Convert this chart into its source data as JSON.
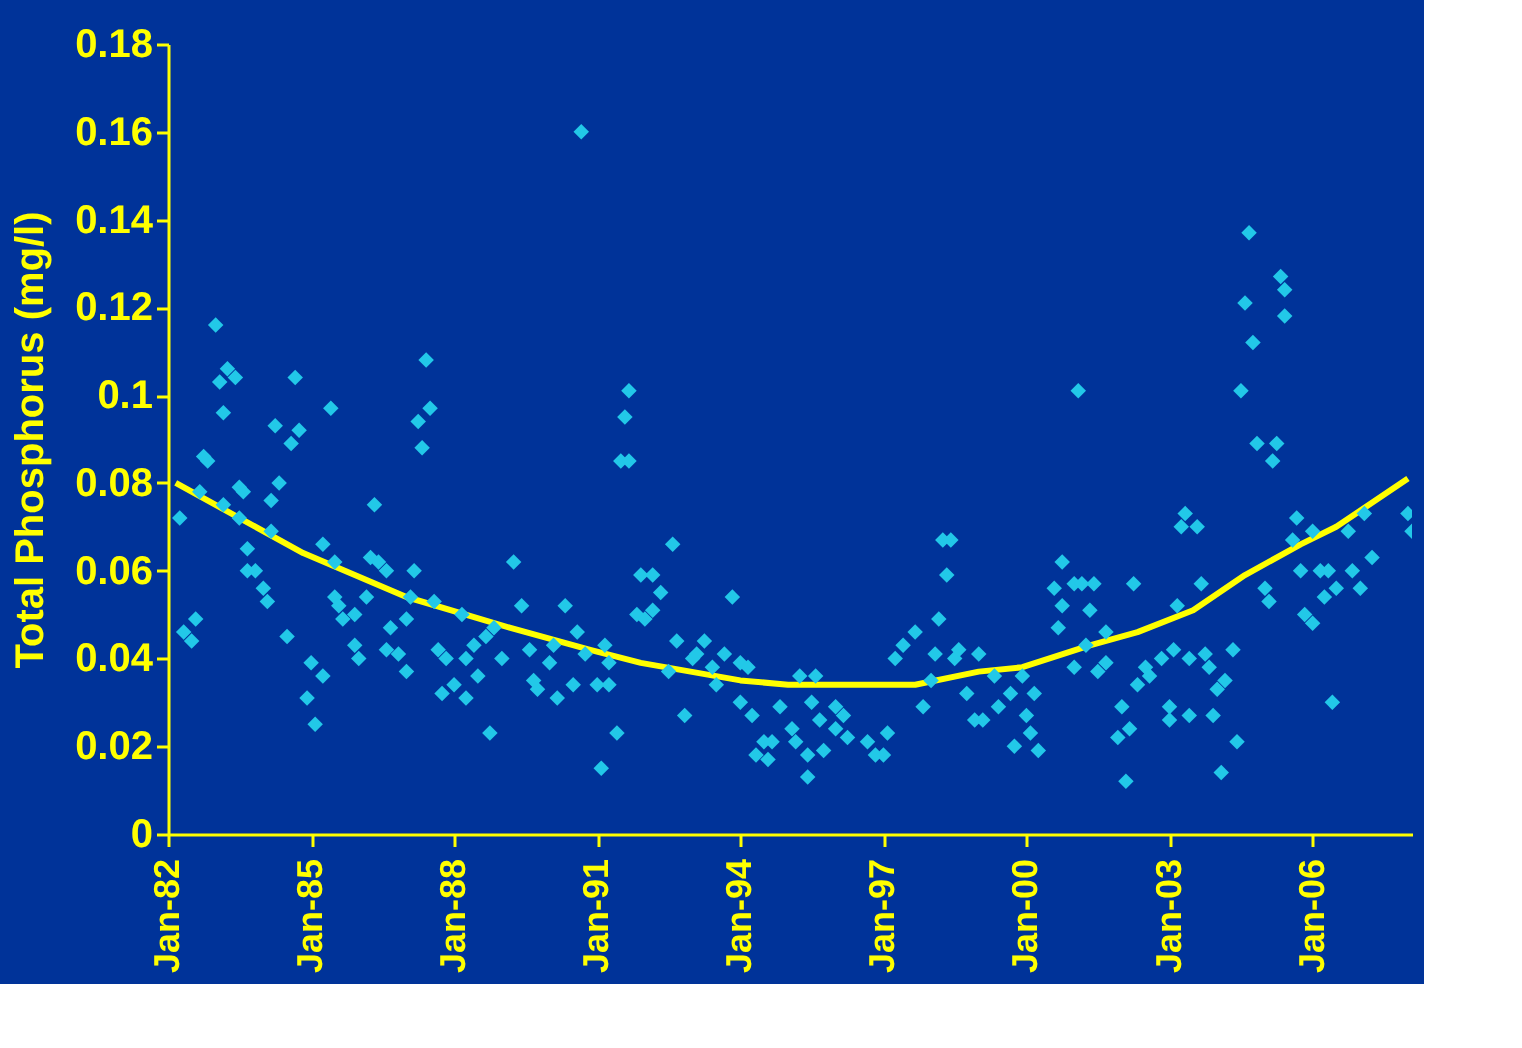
{
  "chart_data": {
    "type": "scatter",
    "ylabel": "Total Phosphorus (mg/l)",
    "marker": "diamond",
    "grid": false,
    "legend": false,
    "xlim": [
      "1982-01",
      "2008-02"
    ],
    "xticks": [
      {
        "value": "1982-01",
        "label": "Jan-82"
      },
      {
        "value": "1985-01",
        "label": "Jan-85"
      },
      {
        "value": "1988-01",
        "label": "Jan-88"
      },
      {
        "value": "1991-01",
        "label": "Jan-91"
      },
      {
        "value": "1994-01",
        "label": "Jan-94"
      },
      {
        "value": "1997-01",
        "label": "Jan-97"
      },
      {
        "value": "2000-01",
        "label": "Jan-00"
      },
      {
        "value": "2003-01",
        "label": "Jan-03"
      },
      {
        "value": "2006-01",
        "label": "Jan-06"
      }
    ],
    "ylim": [
      0,
      0.18
    ],
    "yticks": [
      0,
      0.02,
      0.04,
      0.06,
      0.08,
      0.1,
      0.12,
      0.14,
      0.16,
      0.18
    ],
    "series": [
      {
        "color": "#22c8e8",
        "x": [
          "1982-04",
          "1982-05",
          "1982-07",
          "1982-08",
          "1982-09",
          "1982-10",
          "1982-11",
          "1983-01",
          "1983-02",
          "1983-04",
          "1983-06",
          "1983-03",
          "1983-03",
          "1983-07",
          "1983-08",
          "1983-07",
          "1983-09",
          "1983-09",
          "1983-11",
          "1984-01",
          "1984-02",
          "1984-04",
          "1984-05",
          "1984-03",
          "1984-03",
          "1984-07",
          "1984-08",
          "1984-09",
          "1984-10",
          "1984-12",
          "1985-01",
          "1985-02",
          "1985-04",
          "1985-04",
          "1985-07",
          "1985-06",
          "1985-07",
          "1985-08",
          "1985-09",
          "1985-12",
          "1985-12",
          "1986-01",
          "1986-03",
          "1986-04",
          "1986-05",
          "1986-06",
          "1986-08",
          "1986-09",
          "1986-08",
          "1986-11",
          "1987-01",
          "1987-01",
          "1987-03",
          "1987-02",
          "1987-04",
          "1987-05",
          "1987-06",
          "1987-07",
          "1987-08",
          "1987-09",
          "1987-10",
          "1987-11",
          "1988-01",
          "1988-03",
          "1988-04",
          "1988-04",
          "1988-06",
          "1988-07",
          "1988-09",
          "1988-10",
          "1988-11",
          "1989-01",
          "1989-04",
          "1989-06",
          "1989-08",
          "1989-09",
          "1989-10",
          "1990-01",
          "1990-02",
          "1990-03",
          "1990-05",
          "1990-07",
          "1990-08",
          "1990-09",
          "1990-10",
          "1991-01",
          "1991-02",
          "1991-03",
          "1991-04",
          "1991-04",
          "1991-06",
          "1991-07",
          "1991-09",
          "1991-08",
          "1991-09",
          "1991-12",
          "1992-03",
          "1991-11",
          "1992-01",
          "1992-03",
          "1992-05",
          "1992-07",
          "1992-08",
          "1992-09",
          "1992-11",
          "1993-01",
          "1993-02",
          "1993-04",
          "1993-06",
          "1993-07",
          "1993-09",
          "1993-11",
          "1994-01",
          "1994-01",
          "1994-03",
          "1994-04",
          "1994-05",
          "1994-07",
          "1994-08",
          "1994-09",
          "1994-11",
          "1995-02",
          "1995-03",
          "1995-04",
          "1995-06",
          "1995-06",
          "1995-07",
          "1995-08",
          "1995-09",
          "1995-10",
          "1996-01",
          "1996-01",
          "1996-03",
          "1996-04",
          "1996-09",
          "1996-11",
          "1997-01",
          "1997-02",
          "1997-04",
          "1997-06",
          "1997-09",
          "1997-11",
          "1998-01",
          "1998-02",
          "1998-03",
          "1998-05",
          "1998-04",
          "1998-06",
          "1998-07",
          "1998-08",
          "1998-10",
          "1998-12",
          "1999-01",
          "1999-02",
          "1999-05",
          "1999-06",
          "1999-09",
          "1999-10",
          "1999-12",
          "2000-01",
          "2000-02",
          "2000-04",
          "2000-03",
          "2000-09",
          "2000-08",
          "2000-10",
          "2000-10",
          "2001-01",
          "2001-02",
          "2001-01",
          "2001-03",
          "2001-05",
          "2001-06",
          "2001-04",
          "2001-07",
          "2001-09",
          "2001-09",
          "2001-12",
          "2002-01",
          "2002-02",
          "2002-03",
          "2002-04",
          "2002-05",
          "2002-07",
          "2002-08",
          "2002-11",
          "2003-01",
          "2003-01",
          "2003-02",
          "2003-03",
          "2003-05",
          "2003-04",
          "2003-08",
          "2003-06",
          "2003-06",
          "2003-09",
          "2003-10",
          "2003-11",
          "2003-12",
          "2004-01",
          "2004-02",
          "2004-03",
          "2004-05",
          "2004-06",
          "2004-07",
          "2004-08",
          "2004-09",
          "2004-10",
          "2004-11",
          "2005-01",
          "2005-02",
          "2005-03",
          "2005-04",
          "2005-05",
          "2005-06",
          "2005-06",
          "2005-08",
          "2005-09",
          "2005-10",
          "2005-11",
          "2006-01",
          "2006-01",
          "2006-03",
          "2006-05",
          "2006-04",
          "2006-06",
          "2006-07",
          "2006-10",
          "2006-11",
          "2007-01",
          "2007-02",
          "2007-04",
          "2008-01",
          "2008-02"
        ],
        "values": [
          0.072,
          0.046,
          0.044,
          0.049,
          0.078,
          0.086,
          0.085,
          0.116,
          0.103,
          0.106,
          0.104,
          0.096,
          0.075,
          0.079,
          0.078,
          0.072,
          0.065,
          0.06,
          0.06,
          0.056,
          0.053,
          0.093,
          0.08,
          0.076,
          0.069,
          0.045,
          0.089,
          0.104,
          0.092,
          0.031,
          0.039,
          0.025,
          0.036,
          0.066,
          0.062,
          0.097,
          0.054,
          0.052,
          0.049,
          0.05,
          0.043,
          0.04,
          0.054,
          0.063,
          0.075,
          0.062,
          0.06,
          0.047,
          0.042,
          0.041,
          0.037,
          0.049,
          0.06,
          0.054,
          0.094,
          0.088,
          0.108,
          0.097,
          0.053,
          0.042,
          0.032,
          0.04,
          0.034,
          0.05,
          0.031,
          0.04,
          0.043,
          0.036,
          0.045,
          0.023,
          0.047,
          0.04,
          0.062,
          0.052,
          0.042,
          0.035,
          0.033,
          0.039,
          0.043,
          0.031,
          0.052,
          0.034,
          0.046,
          0.16,
          0.041,
          0.034,
          0.015,
          0.043,
          0.034,
          0.039,
          0.023,
          0.085,
          0.085,
          0.095,
          0.101,
          0.059,
          0.059,
          0.05,
          0.049,
          0.051,
          0.055,
          0.037,
          0.066,
          0.044,
          0.027,
          0.04,
          0.041,
          0.044,
          0.038,
          0.034,
          0.041,
          0.054,
          0.039,
          0.03,
          0.038,
          0.027,
          0.018,
          0.021,
          0.017,
          0.021,
          0.029,
          0.024,
          0.021,
          0.036,
          0.018,
          0.013,
          0.03,
          0.036,
          0.026,
          0.019,
          0.024,
          0.029,
          0.027,
          0.022,
          0.021,
          0.018,
          0.018,
          0.023,
          0.04,
          0.043,
          0.046,
          0.029,
          0.035,
          0.041,
          0.049,
          0.059,
          0.067,
          0.067,
          0.04,
          0.042,
          0.032,
          0.026,
          0.041,
          0.026,
          0.036,
          0.029,
          0.032,
          0.02,
          0.036,
          0.027,
          0.023,
          0.019,
          0.032,
          0.047,
          0.056,
          0.052,
          0.062,
          0.038,
          0.101,
          0.057,
          0.057,
          0.051,
          0.057,
          0.043,
          0.037,
          0.046,
          0.039,
          0.022,
          0.029,
          0.012,
          0.024,
          0.057,
          0.034,
          0.038,
          0.036,
          0.04,
          0.029,
          0.026,
          0.042,
          0.052,
          0.073,
          0.07,
          0.07,
          0.027,
          0.04,
          0.057,
          0.041,
          0.038,
          0.027,
          0.033,
          0.014,
          0.035,
          0.042,
          0.021,
          0.101,
          0.121,
          0.137,
          0.112,
          0.089,
          0.056,
          0.053,
          0.085,
          0.089,
          0.127,
          0.124,
          0.118,
          0.067,
          0.072,
          0.06,
          0.05,
          0.048,
          0.069,
          0.06,
          0.06,
          0.054,
          0.03,
          0.056,
          0.069,
          0.06,
          0.056,
          0.073,
          0.063,
          0.073,
          0.069
        ]
      },
      {
        "type": "line",
        "color": "#ffff00",
        "marker": "none",
        "line_style": "solid",
        "x": [
          "1982-03",
          "1984-11",
          "1987-01",
          "1989-03",
          "1990-11",
          "1991-12",
          "1994-01",
          "1995-01",
          "1997-09",
          "1999-01",
          "1999-12",
          "2001-05",
          "2002-05",
          "2003-07",
          "2004-08",
          "2005-10",
          "2006-07",
          "2008-01"
        ],
        "values": [
          0.08,
          0.064,
          0.054,
          0.047,
          0.042,
          0.039,
          0.035,
          0.034,
          0.034,
          0.037,
          0.038,
          0.043,
          0.046,
          0.051,
          0.059,
          0.066,
          0.07,
          0.081
        ]
      }
    ]
  }
}
